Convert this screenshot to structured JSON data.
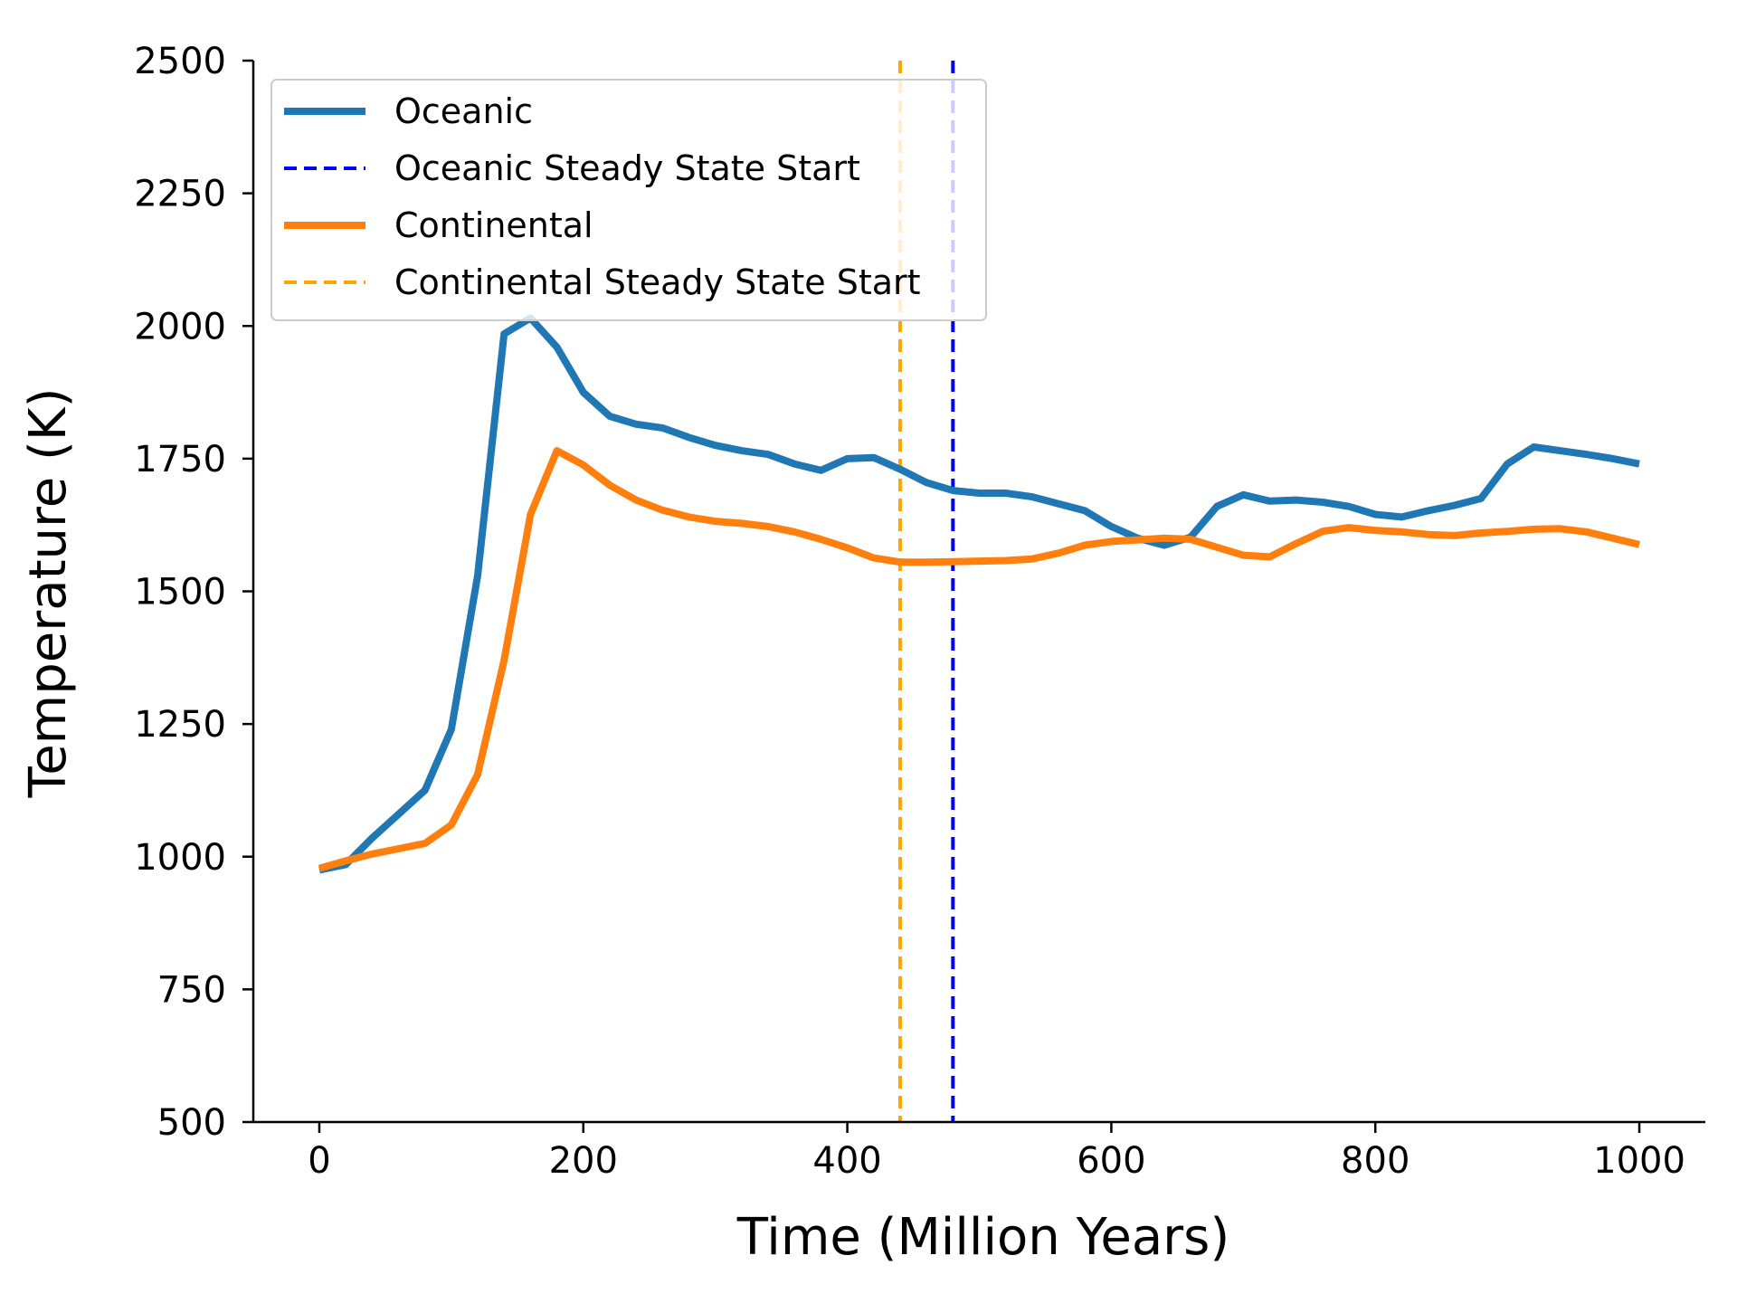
{
  "chart_data": {
    "type": "line",
    "title": "",
    "xlabel": "Time (Million Years)",
    "ylabel": "Temperature (K)",
    "xlim": [
      -50,
      1050
    ],
    "ylim": [
      500,
      2500
    ],
    "xticks": [
      0,
      200,
      400,
      600,
      800,
      1000
    ],
    "yticks": [
      500,
      750,
      1000,
      1250,
      1500,
      1750,
      2000,
      2250,
      2500
    ],
    "grid": false,
    "legend_position": "top-left",
    "x": [
      0,
      20,
      40,
      60,
      80,
      100,
      120,
      140,
      160,
      180,
      200,
      220,
      240,
      260,
      280,
      300,
      320,
      340,
      360,
      380,
      400,
      420,
      440,
      460,
      480,
      500,
      520,
      540,
      560,
      580,
      600,
      620,
      640,
      660,
      680,
      700,
      720,
      740,
      760,
      780,
      800,
      820,
      840,
      860,
      880,
      900,
      920,
      940,
      960,
      980,
      1000
    ],
    "series": [
      {
        "name": "Oceanic",
        "color": "#1f77b4",
        "style": "solid",
        "values": [
          975,
          985,
          1035,
          1080,
          1125,
          1240,
          1530,
          1985,
          2015,
          1960,
          1875,
          1830,
          1815,
          1808,
          1790,
          1775,
          1765,
          1758,
          1740,
          1728,
          1750,
          1752,
          1730,
          1705,
          1690,
          1685,
          1685,
          1678,
          1665,
          1652,
          1622,
          1600,
          1587,
          1602,
          1660,
          1682,
          1670,
          1672,
          1668,
          1660,
          1645,
          1640,
          1652,
          1662,
          1675,
          1740,
          1772,
          1765,
          1758,
          1750,
          1740
        ]
      },
      {
        "name": "Continental",
        "color": "#ff7f0e",
        "style": "solid",
        "values": [
          978,
          992,
          1005,
          1015,
          1025,
          1060,
          1155,
          1370,
          1645,
          1765,
          1738,
          1700,
          1672,
          1653,
          1640,
          1632,
          1628,
          1622,
          1612,
          1598,
          1582,
          1563,
          1555,
          1555,
          1556,
          1557,
          1558,
          1561,
          1572,
          1587,
          1594,
          1597,
          1600,
          1598,
          1583,
          1568,
          1565,
          1590,
          1613,
          1620,
          1615,
          1612,
          1607,
          1605,
          1610,
          1613,
          1617,
          1618,
          1612,
          1600,
          1588
        ]
      },
      {
        "name": "Oceanic Steady State Start",
        "color": "#0000ff",
        "style": "dashed",
        "vline_x": 480
      },
      {
        "name": "Continental Steady State Start",
        "color": "#ffa500",
        "style": "dashed",
        "vline_x": 440
      }
    ]
  }
}
